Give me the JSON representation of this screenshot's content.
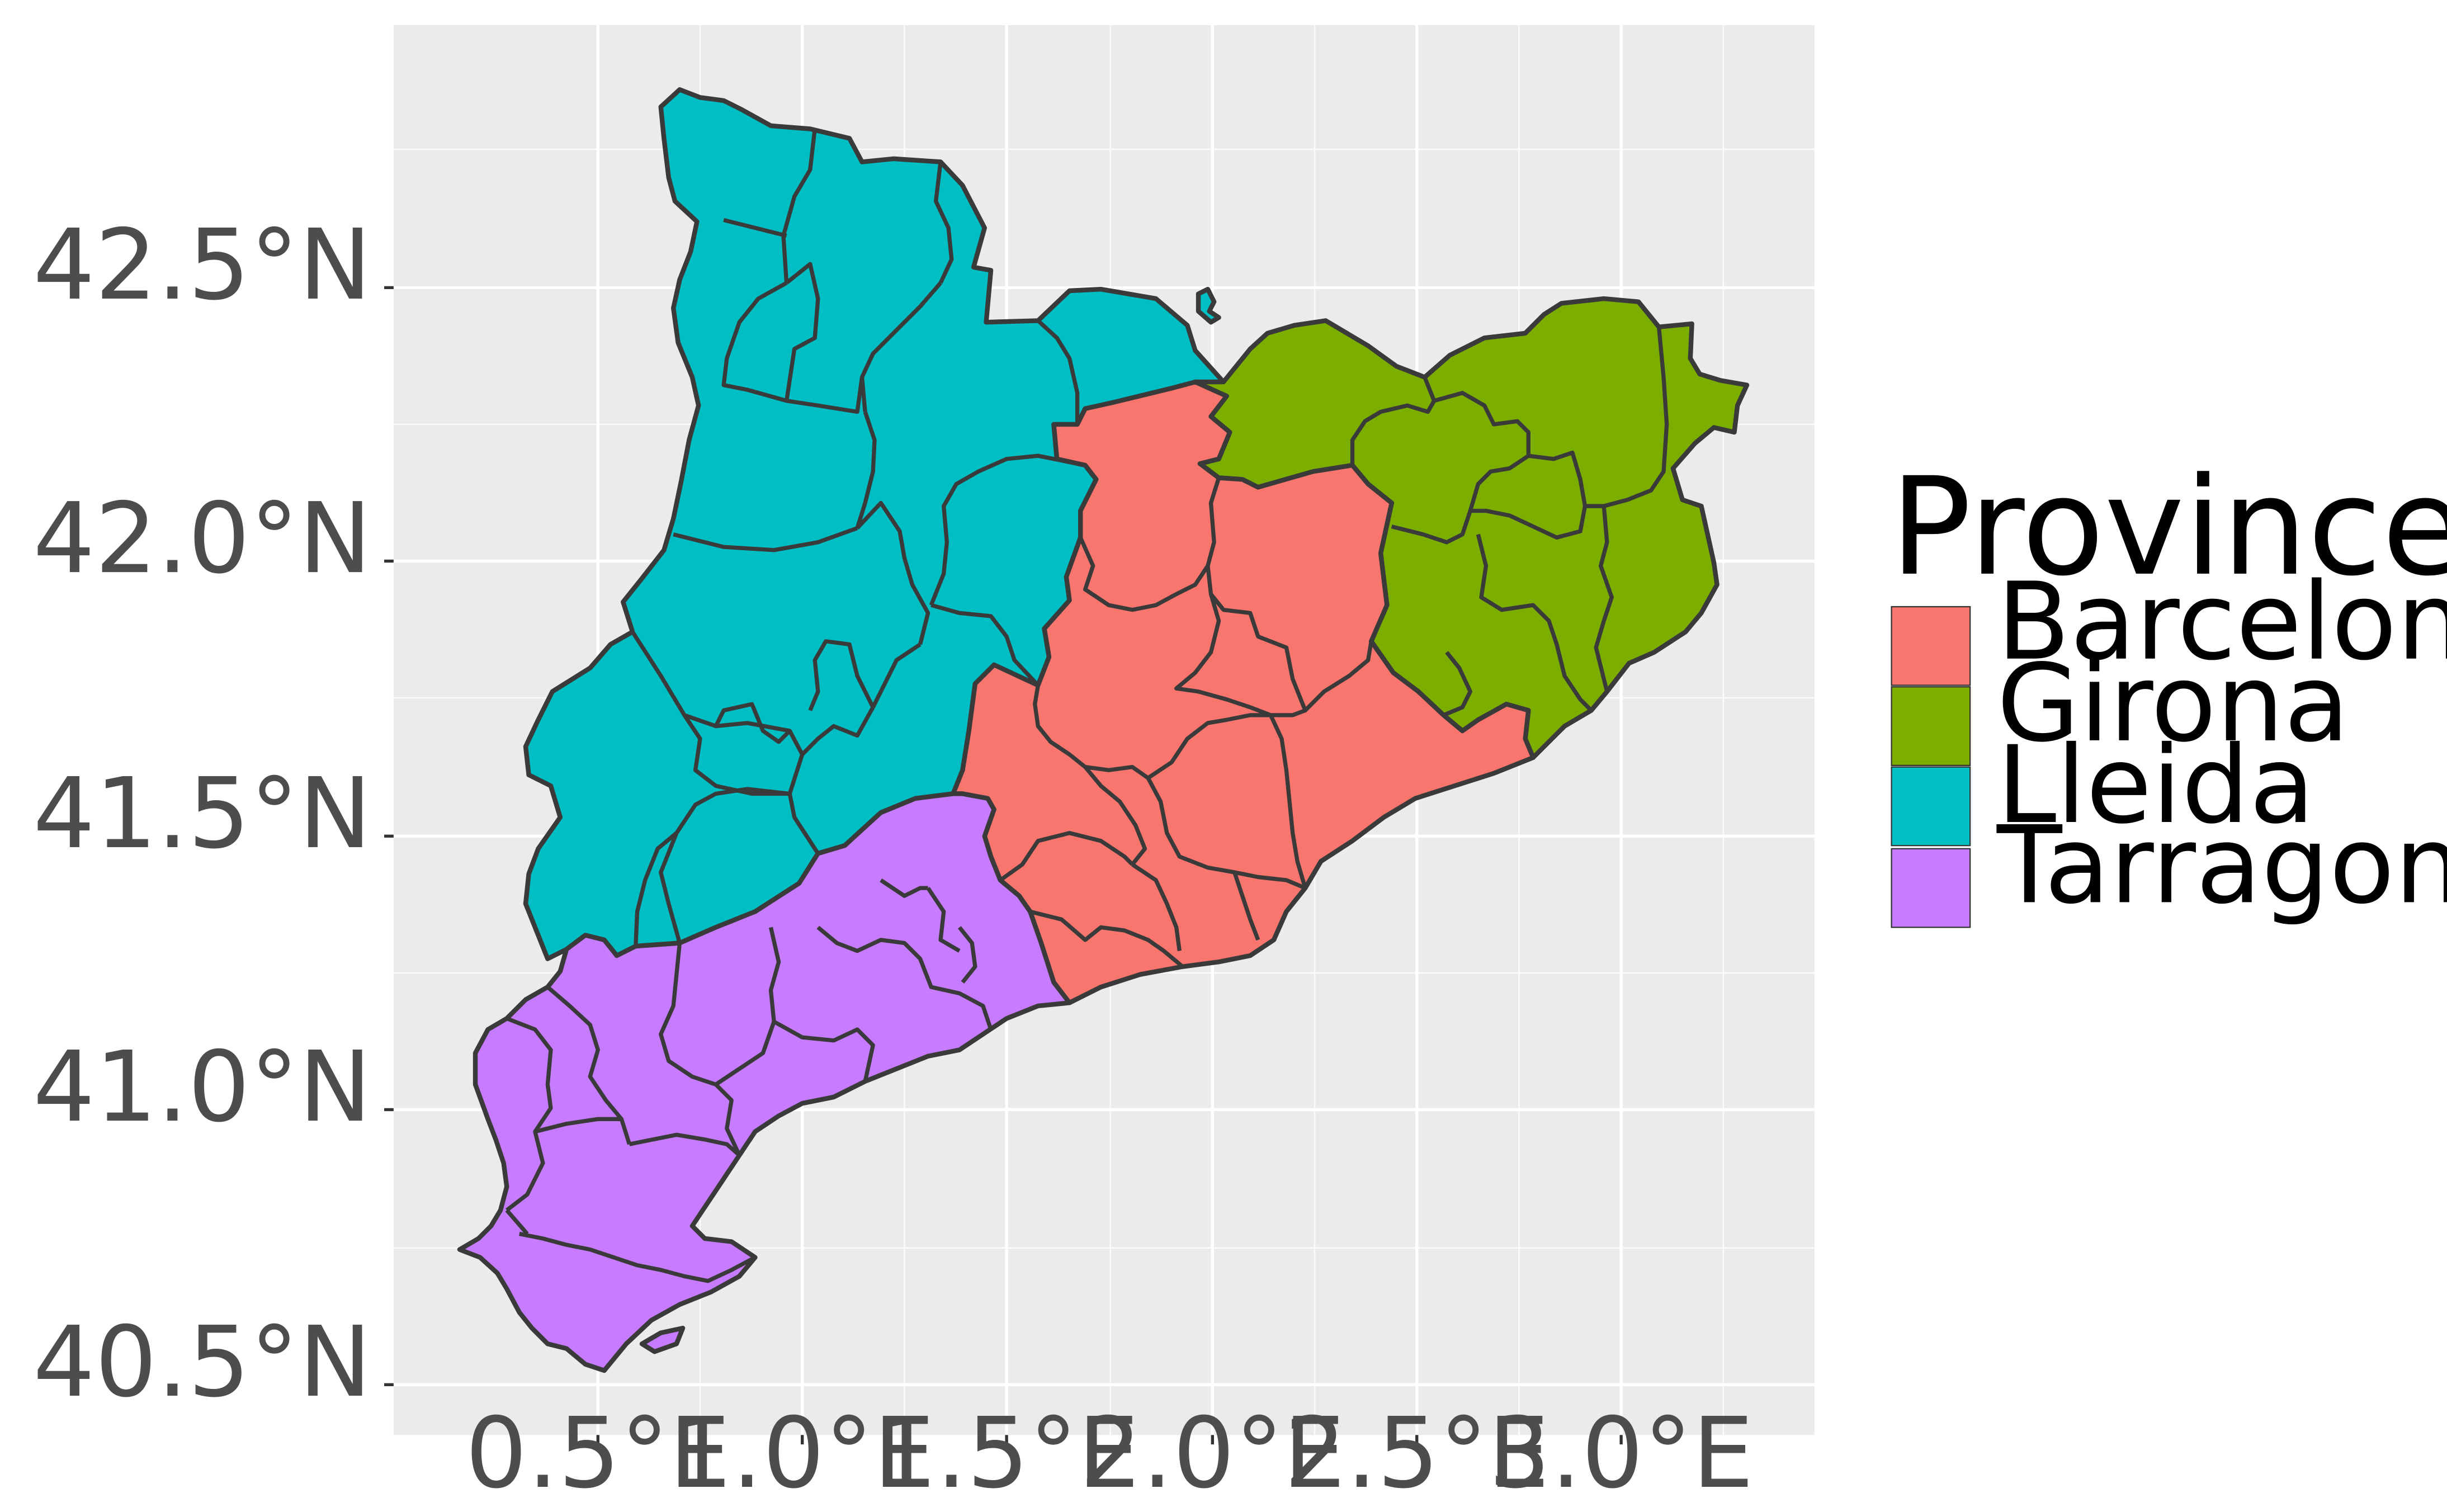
{
  "map": {
    "x_axis": {
      "ticks": [
        "0.5°E",
        "1.0°E",
        "1.5°E",
        "2.0°E",
        "2.5°E",
        "3.0°E"
      ]
    },
    "y_axis": {
      "ticks": [
        "40.5°N",
        "41.0°N",
        "41.5°N",
        "42.0°N",
        "42.5°N"
      ]
    },
    "panel_background": "#ebebeb",
    "grid_color": "#ffffff",
    "legend": {
      "title": "Province",
      "items": [
        {
          "label": "Barcelona",
          "color": "#F8766D"
        },
        {
          "label": "Girona",
          "color": "#7CAE00"
        },
        {
          "label": "Lleida",
          "color": "#00BFC4"
        },
        {
          "label": "Tarragona",
          "color": "#C77CFF"
        }
      ]
    }
  }
}
